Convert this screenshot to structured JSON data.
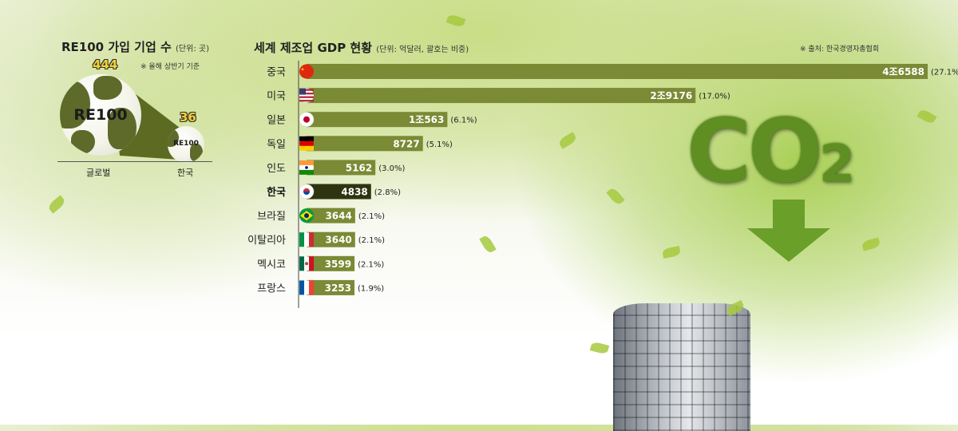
{
  "left_panel": {
    "title": "RE100 가입 기업 수",
    "unit": "(단위: 곳)",
    "note": "※ 올해 상반기 기준",
    "global": {
      "count": "444",
      "label": "RE100",
      "caption": "글로벌",
      "value": 444
    },
    "korea": {
      "count": "36",
      "label": "RE100",
      "caption": "한국",
      "value": 36
    }
  },
  "decoration": {
    "co2_main": "CO",
    "co2_sub": "2"
  },
  "chart_data": {
    "type": "bar",
    "title": "세계 제조업 GDP 현황",
    "unit": "(단위: 억달러, 괄호는 비중)",
    "source": "※ 출처: 한국경영자총협회",
    "highlight": "한국",
    "categories": [
      "중국",
      "미국",
      "일본",
      "독일",
      "인도",
      "한국",
      "브라질",
      "이탈리아",
      "멕시코",
      "프랑스"
    ],
    "values": [
      46588,
      29176,
      10563,
      8727,
      5162,
      4838,
      3644,
      3640,
      3599,
      3253
    ],
    "value_labels": [
      "4조6588",
      "2조9176",
      "1조563",
      "8727",
      "5162",
      "4838",
      "3644",
      "3640",
      "3599",
      "3253"
    ],
    "shares": [
      "(27.1%)",
      "(17.0%)",
      "(6.1%)",
      "(5.1%)",
      "(3.0%)",
      "(2.8%)",
      "(2.1%)",
      "(2.1%)",
      "(2.1%)",
      "(1.9%)"
    ],
    "flag_icons": [
      "china-flag-icon",
      "usa-flag-icon",
      "japan-flag-icon",
      "germany-flag-icon",
      "india-flag-icon",
      "korea-flag-icon",
      "brazil-flag-icon",
      "italy-flag-icon",
      "mexico-flag-icon",
      "france-flag-icon"
    ],
    "colors": {
      "bar": "#7a8a35",
      "bar_highlight": "#2f3410"
    }
  }
}
